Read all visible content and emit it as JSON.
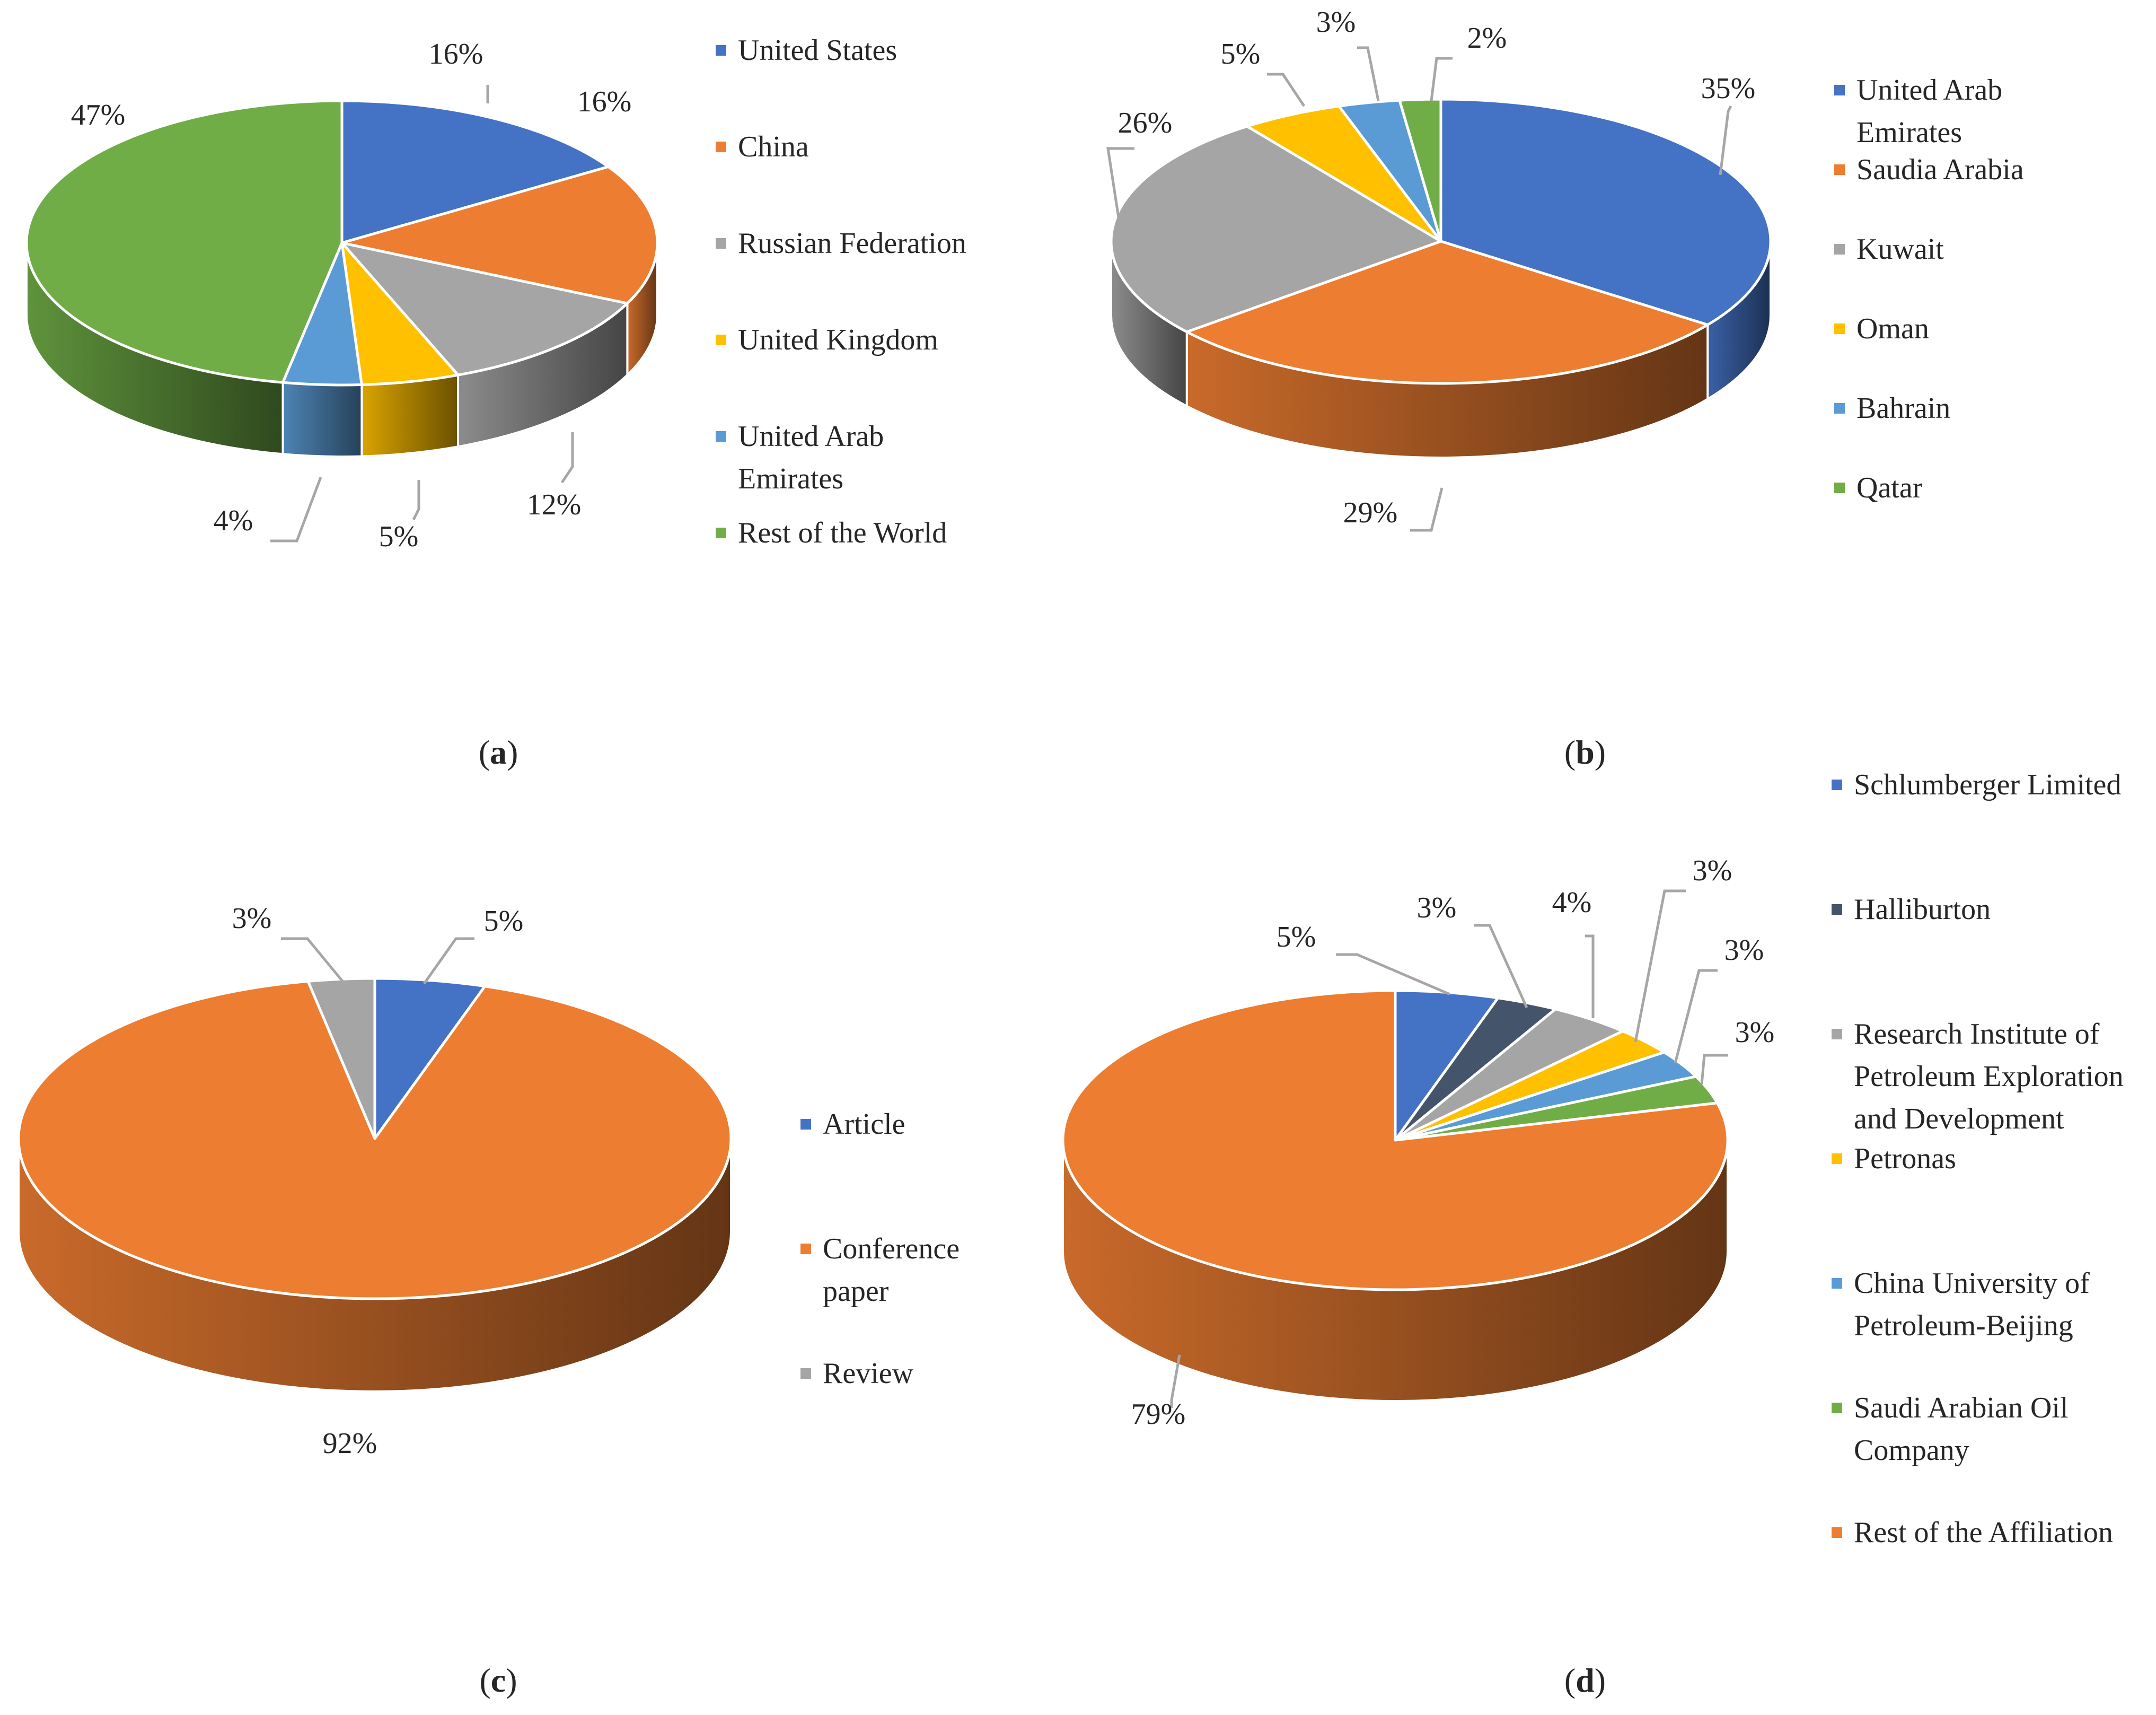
{
  "chart_data": [
    {
      "type": "pie",
      "panel": "a",
      "subtitle": "a",
      "categories": [
        "United States",
        "China",
        "Russian Federation",
        "United Kingdom",
        "United Arab Emirates",
        "Rest of the World"
      ],
      "values": [
        16,
        16,
        12,
        5,
        4,
        47
      ],
      "labels": [
        "16%",
        "16%",
        "12%",
        "5%",
        "4%",
        "47%"
      ],
      "legend_lines": [
        [
          "United States"
        ],
        [
          "China"
        ],
        [
          "Russian Federation"
        ],
        [
          "United Kingdom"
        ],
        [
          "United Arab",
          "Emirates"
        ],
        [
          "Rest of the World"
        ]
      ],
      "colors": [
        "#4472C4",
        "#ED7D31",
        "#A5A5A5",
        "#FFC000",
        "#5B9BD5",
        "#70AD47"
      ],
      "legend_position": "right"
    },
    {
      "type": "pie",
      "panel": "b",
      "subtitle": "b",
      "categories": [
        "United Arab Emirates",
        "Saudia Arabia",
        "Kuwait",
        "Oman",
        "Bahrain",
        "Qatar"
      ],
      "values": [
        35,
        29,
        26,
        5,
        3,
        2
      ],
      "labels": [
        "35%",
        "29%",
        "26%",
        "5%",
        "3%",
        "2%"
      ],
      "legend_lines": [
        [
          "United Arab",
          "Emirates"
        ],
        [
          "Saudia Arabia"
        ],
        [
          "Kuwait"
        ],
        [
          "Oman"
        ],
        [
          "Bahrain"
        ],
        [
          "Qatar"
        ]
      ],
      "colors": [
        "#4472C4",
        "#ED7D31",
        "#A5A5A5",
        "#FFC000",
        "#5B9BD5",
        "#70AD47"
      ],
      "legend_position": "right"
    },
    {
      "type": "pie",
      "panel": "c",
      "subtitle": "c",
      "categories": [
        "Article",
        "Conference paper",
        "Review"
      ],
      "values": [
        5,
        92,
        3
      ],
      "labels": [
        "5%",
        "92%",
        "3%"
      ],
      "legend_lines": [
        [
          "Article"
        ],
        [
          "Conference",
          "paper"
        ],
        [
          "Review"
        ]
      ],
      "colors": [
        "#4472C4",
        "#ED7D31",
        "#A5A5A5"
      ],
      "legend_position": "right"
    },
    {
      "type": "pie",
      "panel": "d",
      "subtitle": "d",
      "categories": [
        "Schlumberger Limited",
        "Halliburton",
        "Research Institute of Petroleum Exploration and Development",
        "Petronas",
        "China University of Petroleum-Beijing",
        "Saudi Arabian Oil Company",
        "Rest of the Affiliation"
      ],
      "values": [
        5,
        3,
        4,
        3,
        3,
        3,
        79
      ],
      "labels": [
        "5%",
        "3%",
        "4%",
        "3%",
        "3%",
        "3%",
        "79%"
      ],
      "legend_lines": [
        [
          "Schlumberger Limited"
        ],
        [
          "Halliburton"
        ],
        [
          "Research Institute of",
          "Petroleum Exploration",
          "and Development"
        ],
        [
          "Petronas"
        ],
        [
          "China University of",
          "Petroleum-Beijing"
        ],
        [
          "Saudi Arabian Oil",
          "Company"
        ],
        [
          "Rest of the Affiliation"
        ]
      ],
      "colors": [
        "#4472C4",
        "#44546A",
        "#A5A5A5",
        "#FFC000",
        "#5B9BD5",
        "#70AD47",
        "#ED7D31"
      ],
      "legend_position": "right"
    }
  ]
}
